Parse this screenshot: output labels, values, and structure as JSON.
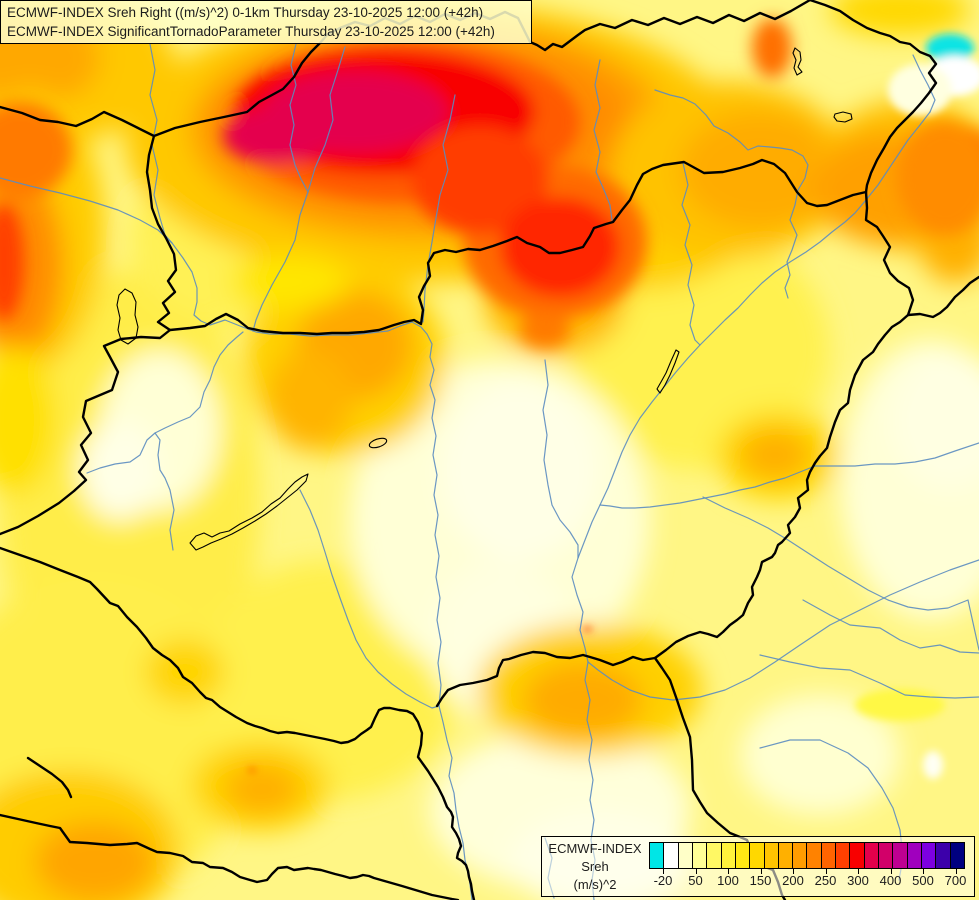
{
  "title_bar": {
    "line1": "ECMWF-INDEX Sreh Right ((m/s)^2) 0-1km Thursday 23-10-2025 12:00 (+42h)",
    "line2": "ECMWF-INDEX SignificantTornadoParameter Thursday 23-10-2025 12:00 (+42h)"
  },
  "legend": {
    "product": "ECMWF-INDEX",
    "parameter": "Sreh",
    "unit": "(m/s)^2",
    "cells": [
      "#00E6E6",
      "#FFFFFF",
      "#FFFFC8",
      "#FFFF96",
      "#FFF864",
      "#FFF23C",
      "#FFE814",
      "#FFD800",
      "#FFC400",
      "#FFB000",
      "#FF9C00",
      "#FF8200",
      "#FF6400",
      "#FF4000",
      "#F80000",
      "#E4004B",
      "#D20069",
      "#BE0091",
      "#A000BE",
      "#7D00E1",
      "#3C00AA",
      "#000080"
    ],
    "ticks": [
      "-20",
      "50",
      "100",
      "150",
      "200",
      "250",
      "300",
      "400",
      "500",
      "700"
    ]
  },
  "map": {
    "palette": {
      "background": "#FFF685",
      "pale_low": "#FFFFE6",
      "yellow": "#FFEE48",
      "gold": "#FFC800",
      "orange": "#FFA000",
      "dark_orange": "#FF8200",
      "red": "#F80000",
      "crimson": "#E4004E",
      "negative_cyan": "#10E4E4",
      "river": "#5B8CC0",
      "border": "#000000"
    }
  }
}
